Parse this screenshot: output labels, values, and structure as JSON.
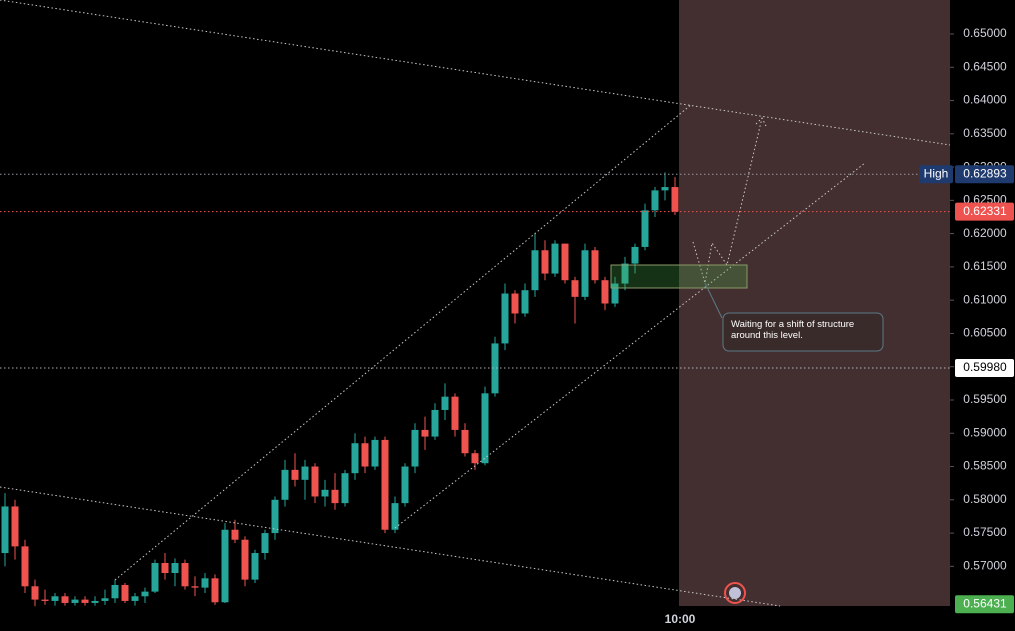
{
  "chart_data": {
    "type": "candlestick",
    "up_color": "#26a69a",
    "down_color": "#ef5350",
    "candles": [
      [
        0.572,
        0.581,
        0.57,
        0.579
      ],
      [
        0.579,
        0.58,
        0.571,
        0.573
      ],
      [
        0.573,
        0.574,
        0.566,
        0.567
      ],
      [
        0.567,
        0.568,
        0.564,
        0.565
      ],
      [
        0.565,
        0.5665,
        0.5642,
        0.5648
      ],
      [
        0.5648,
        0.566,
        0.5641,
        0.5655
      ],
      [
        0.5655,
        0.566,
        0.5641,
        0.5645
      ],
      [
        0.5645,
        0.5655,
        0.5641,
        0.565
      ],
      [
        0.565,
        0.5655,
        0.5641,
        0.5645
      ],
      [
        0.5645,
        0.5655,
        0.5641,
        0.5648
      ],
      [
        0.5648,
        0.5665,
        0.5642,
        0.5652
      ],
      [
        0.5652,
        0.568,
        0.5645,
        0.5672
      ],
      [
        0.5672,
        0.5675,
        0.5645,
        0.5648
      ],
      [
        0.5648,
        0.566,
        0.5641,
        0.5655
      ],
      [
        0.5655,
        0.5668,
        0.5645,
        0.5662
      ],
      [
        0.5662,
        0.571,
        0.566,
        0.5705
      ],
      [
        0.5705,
        0.572,
        0.568,
        0.569
      ],
      [
        0.569,
        0.5712,
        0.567,
        0.5705
      ],
      [
        0.5705,
        0.571,
        0.5665,
        0.567
      ],
      [
        0.567,
        0.5685,
        0.5655,
        0.5668
      ],
      [
        0.5668,
        0.569,
        0.566,
        0.5682
      ],
      [
        0.5682,
        0.5688,
        0.5642,
        0.5646
      ],
      [
        0.5646,
        0.5765,
        0.5645,
        0.5755
      ],
      [
        0.5755,
        0.577,
        0.5735,
        0.574
      ],
      [
        0.574,
        0.5745,
        0.567,
        0.568
      ],
      [
        0.568,
        0.5725,
        0.5675,
        0.572
      ],
      [
        0.572,
        0.5755,
        0.571,
        0.575
      ],
      [
        0.575,
        0.5805,
        0.574,
        0.58
      ],
      [
        0.58,
        0.586,
        0.579,
        0.5845
      ],
      [
        0.5845,
        0.587,
        0.582,
        0.583
      ],
      [
        0.583,
        0.586,
        0.58,
        0.585
      ],
      [
        0.585,
        0.5855,
        0.5795,
        0.5805
      ],
      [
        0.5805,
        0.583,
        0.579,
        0.5815
      ],
      [
        0.5815,
        0.584,
        0.5785,
        0.5795
      ],
      [
        0.5795,
        0.5845,
        0.579,
        0.584
      ],
      [
        0.584,
        0.59,
        0.583,
        0.5885
      ],
      [
        0.5885,
        0.5895,
        0.584,
        0.585
      ],
      [
        0.585,
        0.5895,
        0.5845,
        0.589
      ],
      [
        0.589,
        0.5895,
        0.575,
        0.5755
      ],
      [
        0.5755,
        0.5805,
        0.575,
        0.5795
      ],
      [
        0.5795,
        0.5855,
        0.579,
        0.585
      ],
      [
        0.585,
        0.5915,
        0.584,
        0.5905
      ],
      [
        0.5905,
        0.5925,
        0.5875,
        0.5895
      ],
      [
        0.5895,
        0.5945,
        0.589,
        0.5935
      ],
      [
        0.5935,
        0.5975,
        0.592,
        0.5955
      ],
      [
        0.5955,
        0.596,
        0.5895,
        0.5905
      ],
      [
        0.5905,
        0.5915,
        0.5865,
        0.587
      ],
      [
        0.587,
        0.5875,
        0.5845,
        0.5855
      ],
      [
        0.5855,
        0.597,
        0.5852,
        0.596
      ],
      [
        0.596,
        0.6045,
        0.5955,
        0.6035
      ],
      [
        0.6035,
        0.6125,
        0.6025,
        0.611
      ],
      [
        0.611,
        0.6115,
        0.6065,
        0.608
      ],
      [
        0.608,
        0.6125,
        0.6075,
        0.6115
      ],
      [
        0.6115,
        0.62,
        0.6105,
        0.6175
      ],
      [
        0.6175,
        0.619,
        0.613,
        0.614
      ],
      [
        0.614,
        0.619,
        0.6135,
        0.6185
      ],
      [
        0.6185,
        0.6185,
        0.6125,
        0.613
      ],
      [
        0.613,
        0.6135,
        0.6065,
        0.6105
      ],
      [
        0.6105,
        0.6185,
        0.61,
        0.6175
      ],
      [
        0.6175,
        0.618,
        0.6125,
        0.613
      ],
      [
        0.613,
        0.6135,
        0.6085,
        0.6095
      ],
      [
        0.6095,
        0.6135,
        0.609,
        0.6125
      ],
      [
        0.6125,
        0.6165,
        0.6115,
        0.6155
      ],
      [
        0.6155,
        0.6185,
        0.614,
        0.618
      ],
      [
        0.618,
        0.6245,
        0.6175,
        0.6235
      ],
      [
        0.6235,
        0.627,
        0.6225,
        0.6265
      ],
      [
        0.6265,
        0.6292,
        0.625,
        0.627
      ],
      [
        0.627,
        0.6285,
        0.6228,
        0.6233
      ]
    ],
    "xlim": [
      -0.5,
      94.5
    ],
    "xticks": [
      {
        "value": 67.5,
        "label": "10:00"
      }
    ],
    "ylim": [
      0.56404,
      0.65511
    ],
    "yticks": [
      {
        "value": 0.65,
        "label": "0.65000"
      },
      {
        "value": 0.645,
        "label": "0.64500"
      },
      {
        "value": 0.64,
        "label": "0.64000"
      },
      {
        "value": 0.635,
        "label": "0.63500"
      },
      {
        "value": 0.63,
        "label": "0.63000"
      },
      {
        "value": 0.625,
        "label": "0.62500"
      },
      {
        "value": 0.62,
        "label": "0.62000"
      },
      {
        "value": 0.615,
        "label": "0.61500"
      },
      {
        "value": 0.61,
        "label": "0.61000"
      },
      {
        "value": 0.605,
        "label": "0.60500"
      },
      {
        "value": 0.6,
        "label": "0.60000"
      },
      {
        "value": 0.595,
        "label": "0.59500"
      },
      {
        "value": 0.59,
        "label": "0.59000"
      },
      {
        "value": 0.585,
        "label": "0.58500"
      },
      {
        "value": 0.58,
        "label": "0.58000"
      },
      {
        "value": 0.575,
        "label": "0.57500"
      },
      {
        "value": 0.57,
        "label": "0.57000"
      }
    ],
    "price_lines": [
      {
        "name": "High",
        "value": 0.62893,
        "label": "0.62893",
        "color": "#1e3a6e",
        "line_color": "#9598a1"
      },
      {
        "value": 0.62331,
        "label": "0.62331",
        "color": "#ef5350",
        "line_color": "#ef5350"
      },
      {
        "value": 0.5998,
        "label": "0.59980",
        "color": "#ffffff",
        "line_color": "#b2b5be"
      },
      {
        "value": 0.56431,
        "label": "0.56431",
        "color": "#4caf50"
      }
    ],
    "annotation": "Waiting for a shift of structure around this level."
  }
}
